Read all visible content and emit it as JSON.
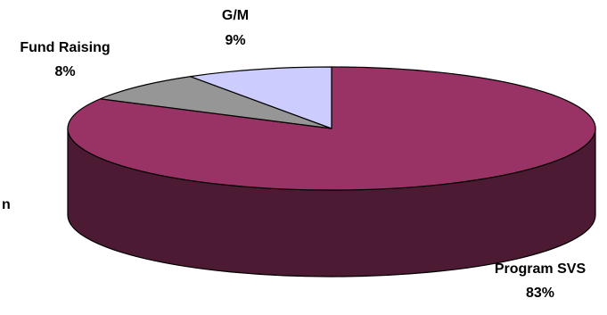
{
  "chart_data": {
    "type": "pie",
    "style": "3d",
    "title": "",
    "slices": [
      {
        "label": "Program SVS",
        "value": 83,
        "display": "83%",
        "color": "#993366",
        "side_color": "#4d1a33"
      },
      {
        "label": "Fund Raising",
        "value": 8,
        "display": "8%",
        "color": "#969696",
        "side_color": "#4b4b4b"
      },
      {
        "label": "G/M",
        "value": 9,
        "display": "9%",
        "color": "#ccccff",
        "side_color": "#666680"
      }
    ]
  },
  "stray_text": "n",
  "outline_color": "#000000"
}
